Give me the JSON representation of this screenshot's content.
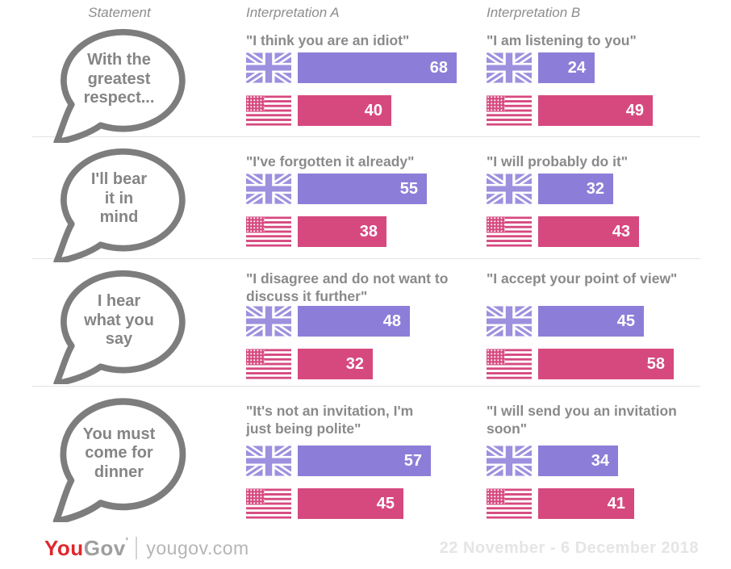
{
  "header": {
    "statement": "Statement",
    "interpretation_a": "Interpretation A",
    "interpretation_b": "Interpretation B"
  },
  "rows": [
    {
      "statement": "With the\ngreatest\nrespect...",
      "a": {
        "quote": "\"I think you are an idiot\"",
        "uk": 68,
        "us": 40
      },
      "b": {
        "quote": "\"I am listening to you\"",
        "uk": 24,
        "us": 49
      }
    },
    {
      "statement": "I'll bear\nit in\nmind",
      "a": {
        "quote": "\"I've forgotten it already\"",
        "uk": 55,
        "us": 38
      },
      "b": {
        "quote": "\"I will probably do it\"",
        "uk": 32,
        "us": 43
      }
    },
    {
      "statement": "I hear\nwhat you\nsay",
      "a": {
        "quote": "\"I disagree and do not want to\ndiscuss it further\"",
        "uk": 48,
        "us": 32
      },
      "b": {
        "quote": "\"I accept your point of view\"",
        "uk": 45,
        "us": 58
      }
    },
    {
      "statement": "You must\ncome for\ndinner",
      "a": {
        "quote": "\"It's not an invitation, I'm\njust being polite\"",
        "uk": 57,
        "us": 45
      },
      "b": {
        "quote": "\"I will send you an invitation\nsoon\"",
        "uk": 34,
        "us": 41
      }
    }
  ],
  "footer": {
    "logo_you": "You",
    "logo_gov": "Gov",
    "logo_tick": "'",
    "site": "yougov.com",
    "date_range": "22 November - 6 December 2018"
  },
  "colors": {
    "uk_bar": "#8c7ed8",
    "us_bar": "#d6497f",
    "uk_flag": "#9d90de",
    "us_flag": "#d6497f",
    "bubble_outline": "#7d7d7d",
    "text_gray": "#8a8a8a",
    "separator": "#e2e2e2",
    "logo_red": "#e0262d",
    "logo_gray": "#9e9e9e",
    "date_gray": "#e5e5e5"
  },
  "chart_data": {
    "type": "bar",
    "title": "British statements and how they are interpreted",
    "orientation": "horizontal",
    "series": [
      "UK",
      "US"
    ],
    "series_colors": {
      "UK": "#8c7ed8",
      "US": "#d6497f"
    },
    "value_range": [
      0,
      68
    ],
    "groups": [
      {
        "statement": "With the greatest respect...",
        "interpretation_a": {
          "label": "I think you are an idiot",
          "UK": 68,
          "US": 40
        },
        "interpretation_b": {
          "label": "I am listening to you",
          "UK": 24,
          "US": 49
        }
      },
      {
        "statement": "I'll bear it in mind",
        "interpretation_a": {
          "label": "I've forgotten it already",
          "UK": 55,
          "US": 38
        },
        "interpretation_b": {
          "label": "I will probably do it",
          "UK": 32,
          "US": 43
        }
      },
      {
        "statement": "I hear what you say",
        "interpretation_a": {
          "label": "I disagree and do not want to discuss it further",
          "UK": 48,
          "US": 32
        },
        "interpretation_b": {
          "label": "I accept your point of view",
          "UK": 45,
          "US": 58
        }
      },
      {
        "statement": "You must come for dinner",
        "interpretation_a": {
          "label": "It's not an invitation, I'm just being polite",
          "UK": 57,
          "US": 45
        },
        "interpretation_b": {
          "label": "I will send you an invitation soon",
          "UK": 34,
          "US": 41
        }
      }
    ],
    "source": "yougov.com",
    "date_range": "22 November - 6 December 2018"
  }
}
